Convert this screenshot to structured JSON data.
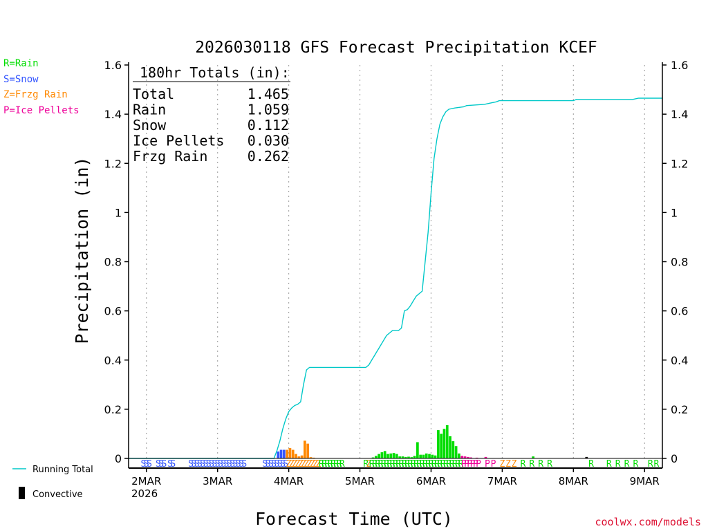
{
  "chart_data": {
    "type": "bar",
    "title": "2026030118 GFS Forecast Precipitation KCEF",
    "ylabel": "Precipitation (in)",
    "xlabel": "Forecast Time (UTC)",
    "ylim": [
      0,
      1.6
    ],
    "xlim_hours": [
      0,
      180
    ],
    "y_ticks": [
      "0",
      "0.2",
      "0.4",
      "0.6",
      "0.8",
      "1",
      "1.2",
      "1.4",
      "1.6"
    ],
    "x_ticks": [
      {
        "hour": 6,
        "label": "2MAR"
      },
      {
        "hour": 30,
        "label": "3MAR"
      },
      {
        "hour": 54,
        "label": "4MAR"
      },
      {
        "hour": 78,
        "label": "5MAR"
      },
      {
        "hour": 102,
        "label": "6MAR"
      },
      {
        "hour": 126,
        "label": "7MAR"
      },
      {
        "hour": 150,
        "label": "8MAR"
      },
      {
        "hour": 174,
        "label": "9MAR"
      }
    ],
    "year_label": "2026",
    "legend": [
      {
        "text": "R=Rain",
        "color": "#00dd00"
      },
      {
        "text": "S=Snow",
        "color": "#3355ff"
      },
      {
        "text": "Z=Frzg Rain",
        "color": "#ff8800"
      },
      {
        "text": "P=Ice Pellets",
        "color": "#ee0099"
      }
    ],
    "bottom_legend": {
      "running_total": "Running Total",
      "convective": "Convective"
    },
    "totals": {
      "header": "180hr Totals (in):",
      "rows": [
        {
          "label": "Total",
          "value": "1.465"
        },
        {
          "label": "Rain",
          "value": "1.059"
        },
        {
          "label": "Snow",
          "value": "0.112"
        },
        {
          "label": "Ice Pellets",
          "value": "0.030"
        },
        {
          "label": "Frzg Rain",
          "value": "0.262"
        }
      ]
    },
    "bars": [
      {
        "h": 51,
        "v": 0.028,
        "t": "S"
      },
      {
        "h": 52,
        "v": 0.035,
        "t": "S"
      },
      {
        "h": 53,
        "v": 0.035,
        "t": "S"
      },
      {
        "h": 54,
        "v": 0.035,
        "t": "Z"
      },
      {
        "h": 55,
        "v": 0.042,
        "t": "Z"
      },
      {
        "h": 56,
        "v": 0.035,
        "t": "Z"
      },
      {
        "h": 57,
        "v": 0.018,
        "t": "Z"
      },
      {
        "h": 58,
        "v": 0.008,
        "t": "Z"
      },
      {
        "h": 59,
        "v": 0.012,
        "t": "Z"
      },
      {
        "h": 60,
        "v": 0.072,
        "t": "Z"
      },
      {
        "h": 61,
        "v": 0.06,
        "t": "Z"
      },
      {
        "h": 62,
        "v": 0.005,
        "t": "Z"
      },
      {
        "h": 63,
        "v": 0.003,
        "t": "Z"
      },
      {
        "h": 83,
        "v": 0.004,
        "t": "R"
      },
      {
        "h": 84,
        "v": 0.01,
        "t": "R"
      },
      {
        "h": 85,
        "v": 0.018,
        "t": "R"
      },
      {
        "h": 86,
        "v": 0.025,
        "t": "R"
      },
      {
        "h": 87,
        "v": 0.03,
        "t": "R"
      },
      {
        "h": 88,
        "v": 0.018,
        "t": "R"
      },
      {
        "h": 89,
        "v": 0.02,
        "t": "R"
      },
      {
        "h": 90,
        "v": 0.022,
        "t": "R"
      },
      {
        "h": 91,
        "v": 0.018,
        "t": "R"
      },
      {
        "h": 92,
        "v": 0.008,
        "t": "R"
      },
      {
        "h": 93,
        "v": 0.008,
        "t": "R"
      },
      {
        "h": 94,
        "v": 0.006,
        "t": "R"
      },
      {
        "h": 95,
        "v": 0.007,
        "t": "R"
      },
      {
        "h": 96,
        "v": 0.005,
        "t": "R"
      },
      {
        "h": 97,
        "v": 0.01,
        "t": "R"
      },
      {
        "h": 98,
        "v": 0.066,
        "t": "R"
      },
      {
        "h": 99,
        "v": 0.015,
        "t": "R"
      },
      {
        "h": 100,
        "v": 0.015,
        "t": "R"
      },
      {
        "h": 101,
        "v": 0.02,
        "t": "R"
      },
      {
        "h": 102,
        "v": 0.018,
        "t": "R"
      },
      {
        "h": 103,
        "v": 0.015,
        "t": "R"
      },
      {
        "h": 104,
        "v": 0.012,
        "t": "R"
      },
      {
        "h": 105,
        "v": 0.115,
        "t": "R"
      },
      {
        "h": 106,
        "v": 0.1,
        "t": "R"
      },
      {
        "h": 107,
        "v": 0.12,
        "t": "R"
      },
      {
        "h": 108,
        "v": 0.135,
        "t": "R"
      },
      {
        "h": 109,
        "v": 0.09,
        "t": "R"
      },
      {
        "h": 110,
        "v": 0.07,
        "t": "R"
      },
      {
        "h": 111,
        "v": 0.05,
        "t": "R"
      },
      {
        "h": 112,
        "v": 0.02,
        "t": "R"
      },
      {
        "h": 113,
        "v": 0.01,
        "t": "P"
      },
      {
        "h": 114,
        "v": 0.008,
        "t": "P"
      },
      {
        "h": 115,
        "v": 0.006,
        "t": "P"
      },
      {
        "h": 116,
        "v": 0.004,
        "t": "P"
      },
      {
        "h": 118,
        "v": 0.003,
        "t": "P"
      },
      {
        "h": 121,
        "v": 0.006,
        "t": "P"
      },
      {
        "h": 137,
        "v": 0.008,
        "t": "R"
      },
      {
        "h": 155,
        "v": 0.006,
        "t": "C"
      }
    ],
    "running_total": [
      [
        0,
        0
      ],
      [
        49,
        0
      ],
      [
        50,
        0.03
      ],
      [
        51,
        0.07
      ],
      [
        52,
        0.12
      ],
      [
        53,
        0.16
      ],
      [
        54,
        0.19
      ],
      [
        55,
        0.205
      ],
      [
        56,
        0.215
      ],
      [
        57,
        0.22
      ],
      [
        58,
        0.23
      ],
      [
        59,
        0.3
      ],
      [
        60,
        0.36
      ],
      [
        61,
        0.37
      ],
      [
        80,
        0.37
      ],
      [
        81,
        0.38
      ],
      [
        82,
        0.4
      ],
      [
        83,
        0.42
      ],
      [
        84,
        0.44
      ],
      [
        85,
        0.46
      ],
      [
        86,
        0.48
      ],
      [
        87,
        0.5
      ],
      [
        88,
        0.51
      ],
      [
        89,
        0.52
      ],
      [
        91,
        0.52
      ],
      [
        92,
        0.53
      ],
      [
        93,
        0.6
      ],
      [
        94,
        0.605
      ],
      [
        95,
        0.62
      ],
      [
        96,
        0.64
      ],
      [
        97,
        0.66
      ],
      [
        99,
        0.68
      ],
      [
        100,
        0.8
      ],
      [
        101,
        0.92
      ],
      [
        102,
        1.08
      ],
      [
        103,
        1.22
      ],
      [
        104,
        1.3
      ],
      [
        105,
        1.36
      ],
      [
        106,
        1.39
      ],
      [
        107,
        1.41
      ],
      [
        108,
        1.42
      ],
      [
        110,
        1.425
      ],
      [
        113,
        1.43
      ],
      [
        114,
        1.435
      ],
      [
        120,
        1.44
      ],
      [
        122,
        1.445
      ],
      [
        124,
        1.45
      ],
      [
        125,
        1.455
      ],
      [
        150,
        1.455
      ],
      [
        151,
        1.46
      ],
      [
        170,
        1.46
      ],
      [
        172,
        1.465
      ],
      [
        180,
        1.465
      ]
    ],
    "ptype_row": [
      {
        "h": 5,
        "t": "S"
      },
      {
        "h": 6,
        "t": "S"
      },
      {
        "h": 7,
        "t": "S"
      },
      {
        "h": 10,
        "t": "S"
      },
      {
        "h": 11,
        "t": "S"
      },
      {
        "h": 12,
        "t": "S"
      },
      {
        "h": 14,
        "t": "S"
      },
      {
        "h": 15,
        "t": "S"
      },
      {
        "h": 21,
        "t": "S"
      },
      {
        "h": 22,
        "t": "S"
      },
      {
        "h": 23,
        "t": "S"
      },
      {
        "h": 24,
        "t": "S"
      },
      {
        "h": 25,
        "t": "S"
      },
      {
        "h": 26,
        "t": "S"
      },
      {
        "h": 27,
        "t": "S"
      },
      {
        "h": 28,
        "t": "S"
      },
      {
        "h": 29,
        "t": "S"
      },
      {
        "h": 30,
        "t": "S"
      },
      {
        "h": 31,
        "t": "S"
      },
      {
        "h": 32,
        "t": "S"
      },
      {
        "h": 33,
        "t": "S"
      },
      {
        "h": 34,
        "t": "S"
      },
      {
        "h": 35,
        "t": "S"
      },
      {
        "h": 36,
        "t": "S"
      },
      {
        "h": 37,
        "t": "S"
      },
      {
        "h": 38,
        "t": "S"
      },
      {
        "h": 39,
        "t": "S"
      },
      {
        "h": 46,
        "t": "S"
      },
      {
        "h": 47,
        "t": "S"
      },
      {
        "h": 48,
        "t": "S"
      },
      {
        "h": 49,
        "t": "S"
      },
      {
        "h": 50,
        "t": "S"
      },
      {
        "h": 51,
        "t": "S"
      },
      {
        "h": 52,
        "t": "S"
      },
      {
        "h": 53,
        "t": "S"
      },
      {
        "h": 54,
        "t": "Z"
      },
      {
        "h": 55,
        "t": "Z"
      },
      {
        "h": 56,
        "t": "Z"
      },
      {
        "h": 57,
        "t": "Z"
      },
      {
        "h": 58,
        "t": "Z"
      },
      {
        "h": 59,
        "t": "Z"
      },
      {
        "h": 60,
        "t": "Z"
      },
      {
        "h": 61,
        "t": "Z"
      },
      {
        "h": 62,
        "t": "Z"
      },
      {
        "h": 63,
        "t": "Z"
      },
      {
        "h": 64,
        "t": "Z"
      },
      {
        "h": 65,
        "t": "R"
      },
      {
        "h": 66,
        "t": "R"
      },
      {
        "h": 67,
        "t": "R"
      },
      {
        "h": 68,
        "t": "R"
      },
      {
        "h": 69,
        "t": "R"
      },
      {
        "h": 70,
        "t": "R"
      },
      {
        "h": 71,
        "t": "R"
      },
      {
        "h": 72,
        "t": "R"
      },
      {
        "h": 80,
        "t": "R"
      },
      {
        "h": 81,
        "t": "Z"
      },
      {
        "h": 82,
        "t": "R"
      },
      {
        "h": 83,
        "t": "R"
      },
      {
        "h": 84,
        "t": "R"
      },
      {
        "h": 85,
        "t": "R"
      },
      {
        "h": 86,
        "t": "R"
      },
      {
        "h": 87,
        "t": "R"
      },
      {
        "h": 88,
        "t": "R"
      },
      {
        "h": 89,
        "t": "R"
      },
      {
        "h": 90,
        "t": "R"
      },
      {
        "h": 91,
        "t": "R"
      },
      {
        "h": 92,
        "t": "R"
      },
      {
        "h": 93,
        "t": "R"
      },
      {
        "h": 94,
        "t": "R"
      },
      {
        "h": 95,
        "t": "R"
      },
      {
        "h": 96,
        "t": "R"
      },
      {
        "h": 97,
        "t": "R"
      },
      {
        "h": 98,
        "t": "R"
      },
      {
        "h": 99,
        "t": "R"
      },
      {
        "h": 100,
        "t": "R"
      },
      {
        "h": 101,
        "t": "R"
      },
      {
        "h": 102,
        "t": "R"
      },
      {
        "h": 103,
        "t": "R"
      },
      {
        "h": 104,
        "t": "R"
      },
      {
        "h": 105,
        "t": "R"
      },
      {
        "h": 106,
        "t": "R"
      },
      {
        "h": 107,
        "t": "R"
      },
      {
        "h": 108,
        "t": "R"
      },
      {
        "h": 109,
        "t": "R"
      },
      {
        "h": 110,
        "t": "R"
      },
      {
        "h": 111,
        "t": "R"
      },
      {
        "h": 112,
        "t": "R"
      },
      {
        "h": 113,
        "t": "P"
      },
      {
        "h": 114,
        "t": "P"
      },
      {
        "h": 115,
        "t": "P"
      },
      {
        "h": 116,
        "t": "P"
      },
      {
        "h": 117,
        "t": "P"
      },
      {
        "h": 118,
        "t": "P"
      },
      {
        "h": 121,
        "t": "P"
      },
      {
        "h": 123,
        "t": "P"
      },
      {
        "h": 126,
        "t": "Z"
      },
      {
        "h": 128,
        "t": "Z"
      },
      {
        "h": 130,
        "t": "Z"
      },
      {
        "h": 133,
        "t": "R"
      },
      {
        "h": 136,
        "t": "R"
      },
      {
        "h": 139,
        "t": "R"
      },
      {
        "h": 142,
        "t": "R"
      },
      {
        "h": 156,
        "t": "R"
      },
      {
        "h": 162,
        "t": "R"
      },
      {
        "h": 165,
        "t": "R"
      },
      {
        "h": 168,
        "t": "R"
      },
      {
        "h": 171,
        "t": "R"
      },
      {
        "h": 176,
        "t": "R"
      },
      {
        "h": 178,
        "t": "R"
      }
    ],
    "colors": {
      "R": "#00dd00",
      "S": "#3355ff",
      "Z": "#ff8800",
      "P": "#ee0099",
      "C": "#000000",
      "total": "#00c8c8"
    }
  },
  "footer": {
    "credit": "coolwx.com/models"
  }
}
